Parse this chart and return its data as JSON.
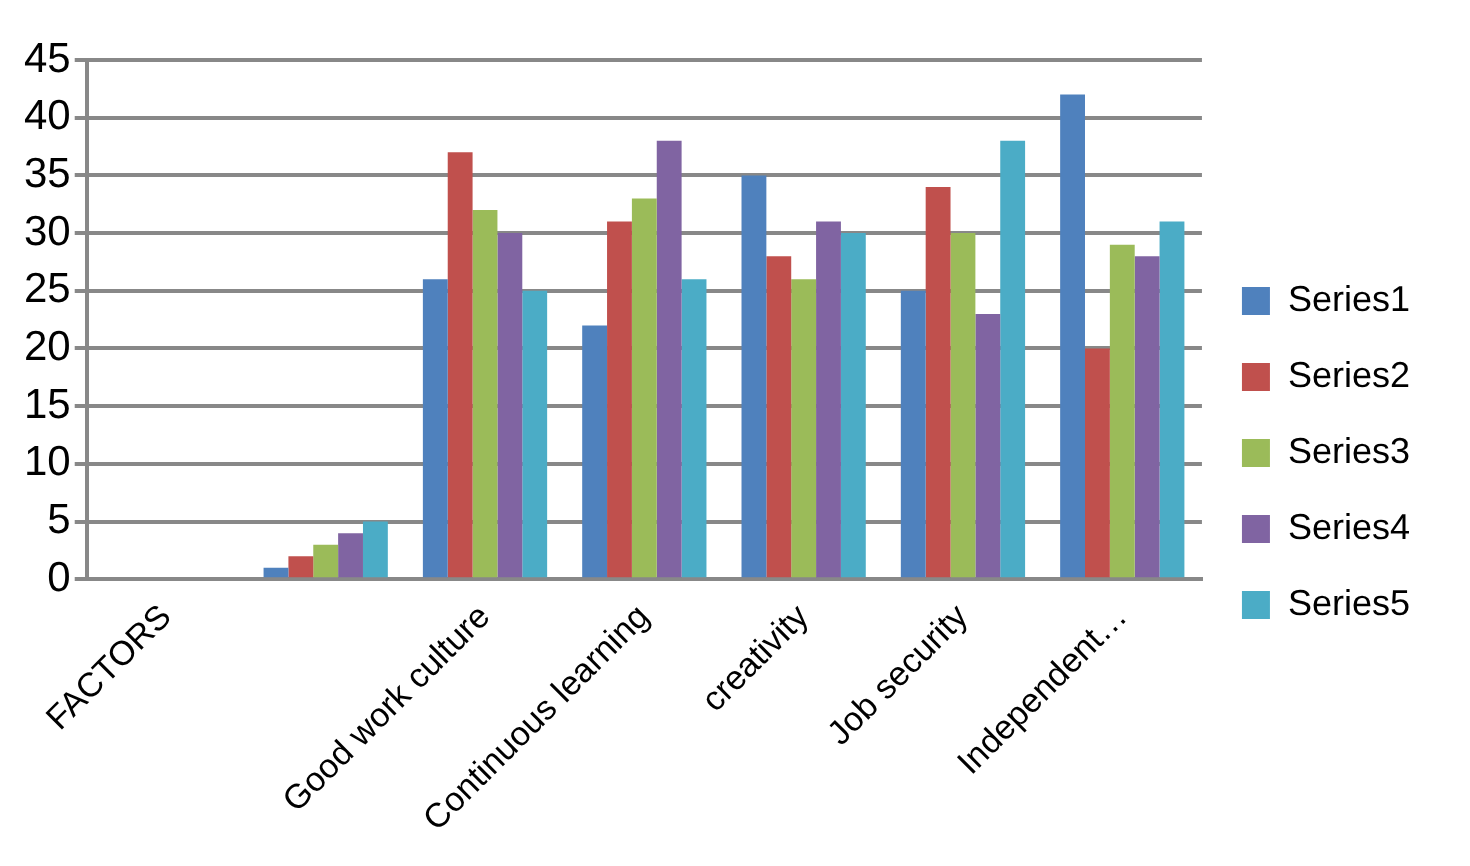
{
  "chart_data": {
    "type": "bar",
    "categories": [
      "FACTORS",
      null,
      "Good work culture",
      "Continuous learning",
      "creativity",
      "Job security",
      "Independent…"
    ],
    "series": [
      {
        "name": "Series1",
        "color": "#4f81bd",
        "values": [
          null,
          1,
          26,
          22,
          35,
          25,
          42
        ]
      },
      {
        "name": "Series2",
        "color": "#c0504d",
        "values": [
          null,
          2,
          37,
          31,
          28,
          34,
          20
        ]
      },
      {
        "name": "Series3",
        "color": "#9bbb59",
        "values": [
          null,
          3,
          32,
          33,
          26,
          30,
          29
        ]
      },
      {
        "name": "Series4",
        "color": "#8064a2",
        "values": [
          null,
          4,
          30,
          38,
          31,
          23,
          28
        ]
      },
      {
        "name": "Series5",
        "color": "#4bacc6",
        "values": [
          null,
          5,
          25,
          26,
          30,
          38,
          31
        ]
      }
    ],
    "ylim": [
      0,
      45
    ],
    "yticks": [
      0,
      5,
      10,
      15,
      20,
      25,
      30,
      35,
      40,
      45
    ],
    "grid": "y",
    "legend": "right"
  }
}
